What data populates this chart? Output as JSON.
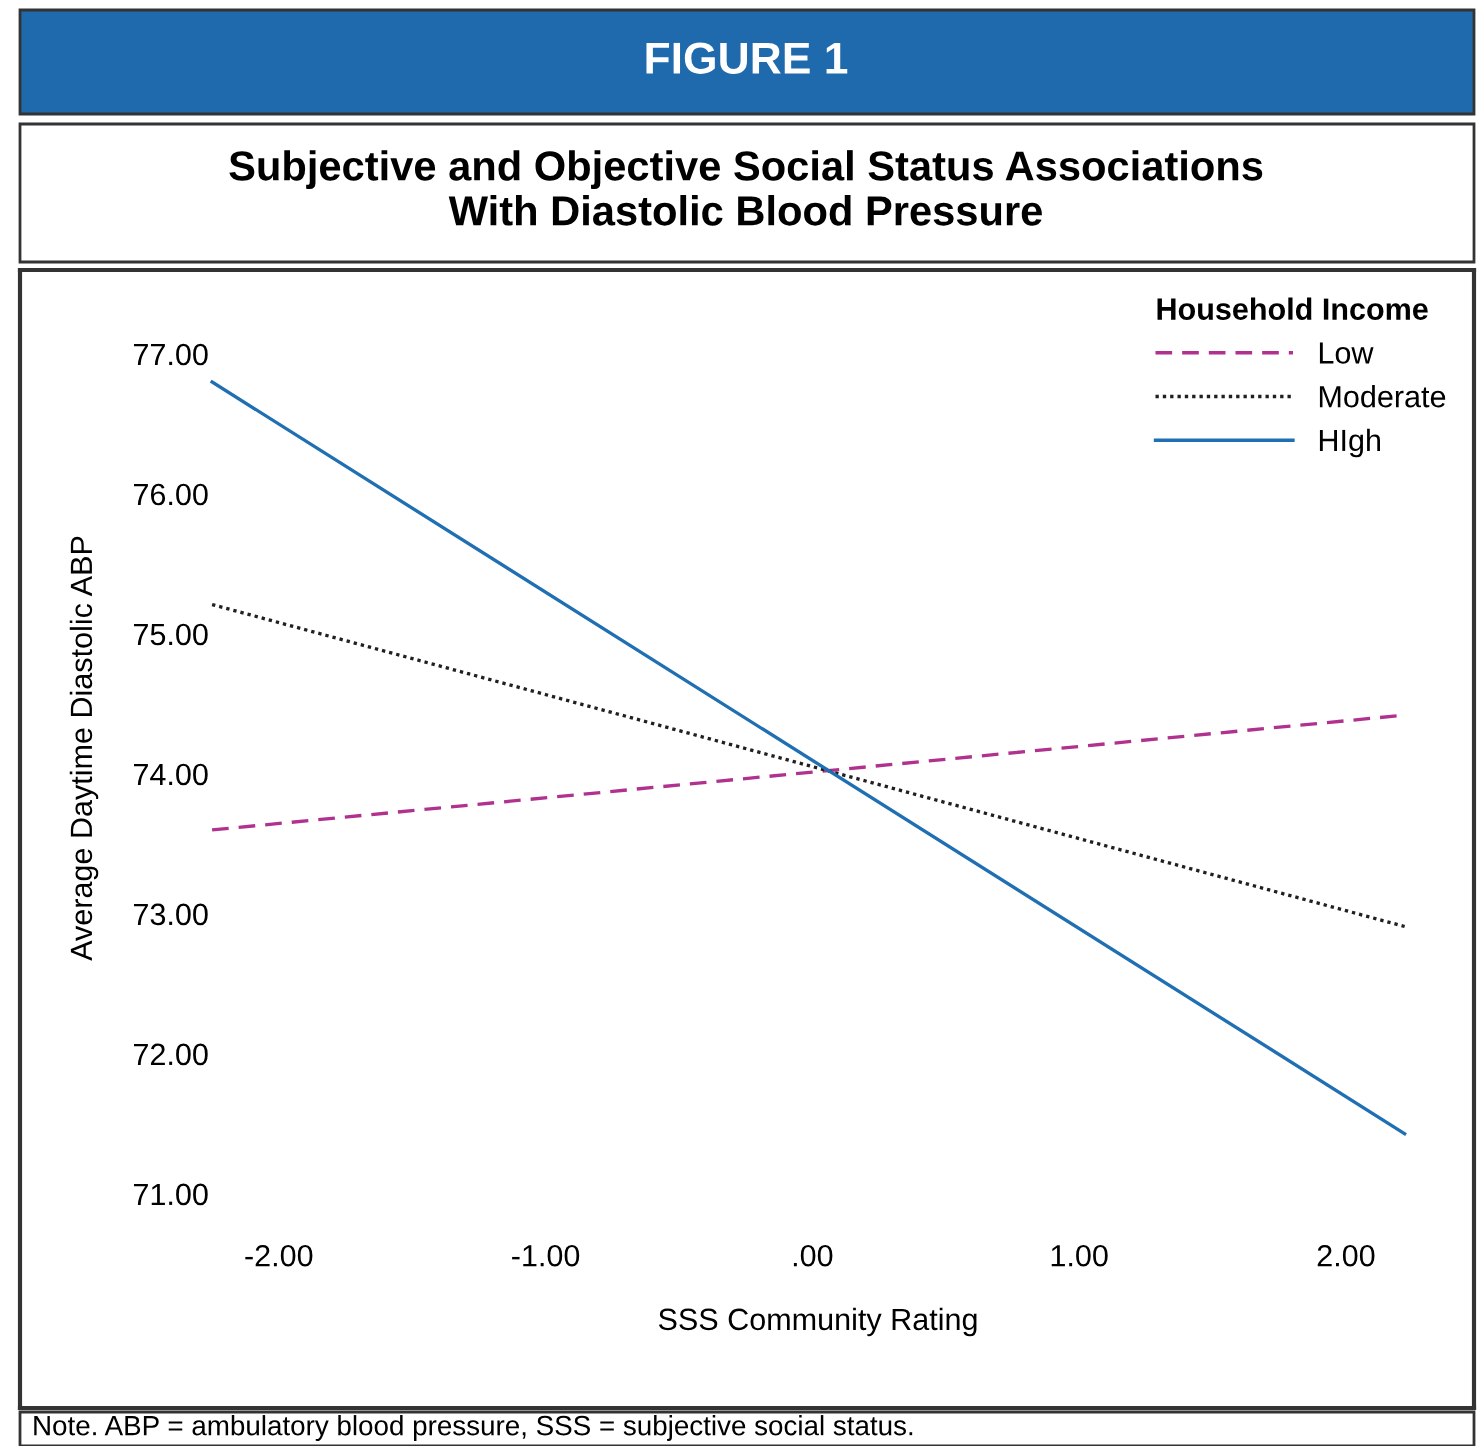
{
  "chart_data": {
    "type": "line",
    "title": "FIGURE 1",
    "subtitle": "Subjective and Objective Social Status Associations\nWith Diastolic Blood Pressure",
    "xlabel": "SSS Community Rating",
    "ylabel": "Average Daytime Diastolic ABP",
    "legend_title": "Household Income",
    "x": [
      -2.25,
      2.22
    ],
    "series": [
      {
        "name": "Low",
        "color": "#b1318f",
        "line_style": "dashed",
        "values": [
          73.6,
          74.42
        ]
      },
      {
        "name": "Moderate",
        "color": "#231f20",
        "line_style": "dotted",
        "values": [
          75.21,
          72.91
        ]
      },
      {
        "name": "HIgh",
        "color": "#1f6fb2",
        "line_style": "solid",
        "values": [
          76.8,
          71.43
        ]
      }
    ],
    "xlim": [
      -2.97,
      2.48
    ],
    "xticks": [
      {
        "value": -2,
        "label": "-2.00"
      },
      {
        "value": -1,
        "label": "-1.00"
      },
      {
        "value": 0,
        "label": ".00"
      },
      {
        "value": 1,
        "label": "1.00"
      },
      {
        "value": 2,
        "label": "2.00"
      }
    ],
    "ylim": [
      69.47,
      77.6
    ],
    "yticks": [
      {
        "value": 71,
        "label": "71.00"
      },
      {
        "value": 72,
        "label": "72.00"
      },
      {
        "value": 73,
        "label": "73.00"
      },
      {
        "value": 74,
        "label": "74.00"
      },
      {
        "value": 75,
        "label": "75.00"
      },
      {
        "value": 76,
        "label": "76.00"
      },
      {
        "value": 77,
        "label": "77.00"
      }
    ],
    "grid": false,
    "legend": "top right",
    "annotations": [
      "Note. ABP = ambulatory blood pressure, SSS = subjective social status."
    ]
  }
}
